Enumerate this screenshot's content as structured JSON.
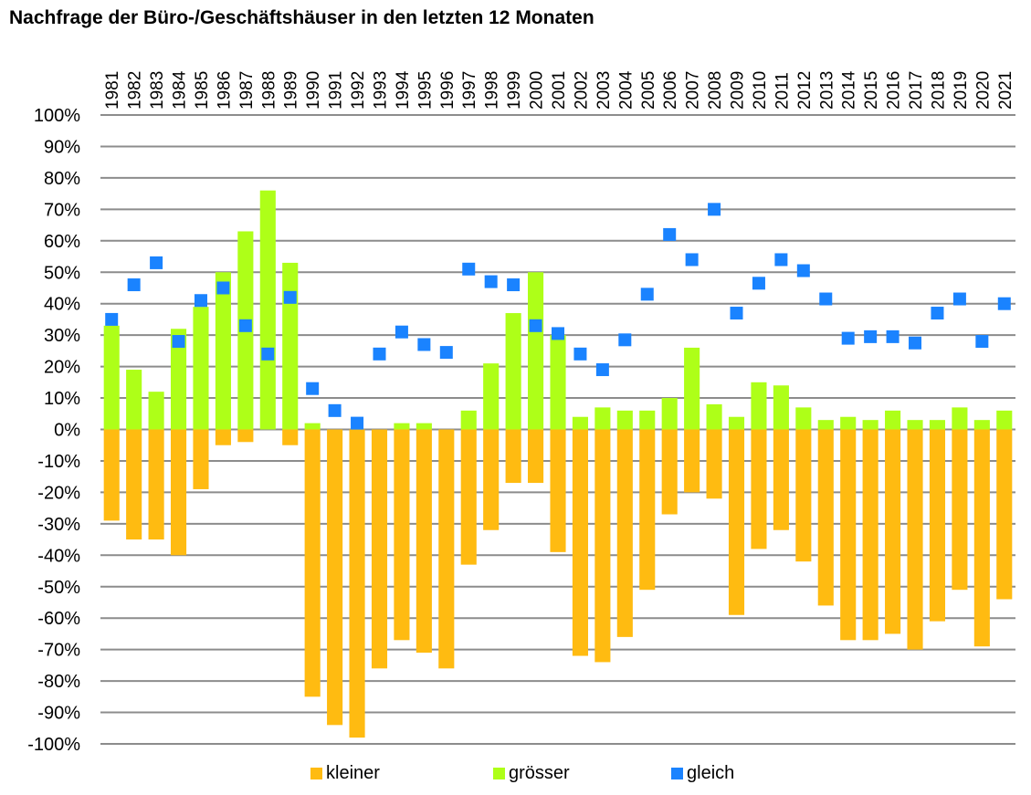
{
  "chart_data": {
    "type": "bar",
    "title": "Nachfrage der Büro-/Geschäftshäuser in den letzten 12 Monaten",
    "xlabel": "",
    "ylabel": "",
    "ylim": [
      -100,
      100
    ],
    "y_ticks": [
      100,
      90,
      80,
      70,
      60,
      50,
      40,
      30,
      20,
      10,
      0,
      -10,
      -20,
      -30,
      -40,
      -50,
      -60,
      -70,
      -80,
      -90,
      -100
    ],
    "y_tick_labels": [
      "100%",
      "90%",
      "80%",
      "70%",
      "60%",
      "50%",
      "40%",
      "30%",
      "20%",
      "10%",
      "0%",
      "-10%",
      "-20%",
      "-30%",
      "-40%",
      "-50%",
      "-60%",
      "-70%",
      "-80%",
      "-90%",
      "-100%"
    ],
    "grid": true,
    "legend_position": "bottom",
    "categories": [
      "1981",
      "1982",
      "1983",
      "1984",
      "1985",
      "1986",
      "1987",
      "1988",
      "1989",
      "1990",
      "1991",
      "1992",
      "1993",
      "1994",
      "1995",
      "1996",
      "1997",
      "1998",
      "1999",
      "2000",
      "2001",
      "2002",
      "2003",
      "2004",
      "2005",
      "2006",
      "2007",
      "2008",
      "2009",
      "2010",
      "2011",
      "2012",
      "2013",
      "2014",
      "2015",
      "2016",
      "2017",
      "2018",
      "2019",
      "2020",
      "2021"
    ],
    "series": [
      {
        "name": "kleiner",
        "kind": "bar",
        "color": "#FFBB11",
        "values": [
          -29,
          -35,
          -35,
          -40,
          -19,
          -5,
          -4,
          0,
          -5,
          -85,
          -94,
          -98,
          -76,
          -67,
          -71,
          -76,
          -43,
          -32,
          -17,
          -17,
          -39,
          -72,
          -74,
          -66,
          -51,
          -27,
          -20,
          -22,
          -59,
          -38,
          -32,
          -42,
          -56,
          -67,
          -67,
          -65,
          -70,
          -61,
          -51,
          -69,
          -54
        ]
      },
      {
        "name": "grösser",
        "kind": "bar",
        "color": "#AEFF18",
        "values": [
          33,
          19,
          12,
          32,
          39,
          50,
          63,
          76,
          53,
          2,
          0,
          0,
          0,
          2,
          2,
          0,
          6,
          21,
          37,
          50,
          30,
          4,
          7,
          6,
          6,
          10,
          26,
          8,
          4,
          15,
          14,
          7,
          3,
          4,
          3,
          6,
          3,
          3,
          7,
          3,
          6
        ]
      },
      {
        "name": "gleich",
        "kind": "marker",
        "color": "#1A83FF",
        "values": [
          35,
          46,
          53,
          28,
          41,
          45,
          33,
          24,
          42,
          13,
          6,
          2,
          24,
          31,
          27,
          24.5,
          51,
          47,
          46,
          33,
          30.5,
          24,
          19,
          28.5,
          43,
          62,
          54,
          70,
          37,
          46.5,
          54,
          50.5,
          41.5,
          29,
          29.5,
          29.5,
          27.5,
          37,
          41.5,
          28,
          40
        ]
      }
    ]
  },
  "colors": {
    "gridline": "#8C8C8C"
  }
}
